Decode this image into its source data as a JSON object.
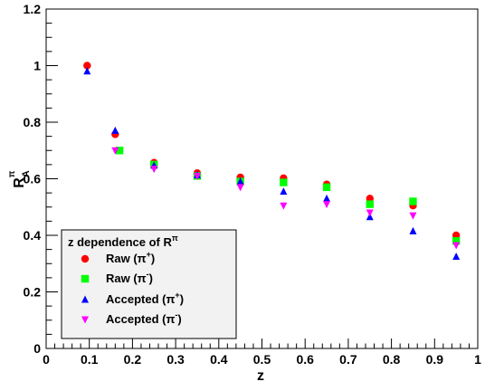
{
  "chart_data": {
    "type": "scatter",
    "title": "",
    "xlabel": "z",
    "ylabel": "R",
    "ylabel_sup": "π",
    "ylabel_sub": "A",
    "xlim": [
      0,
      1
    ],
    "ylim": [
      0,
      1.2
    ],
    "x_ticks": [
      "0",
      "0.1",
      "0.2",
      "0.3",
      "0.4",
      "0.5",
      "0.6",
      "0.7",
      "0.8",
      "0.9",
      "1"
    ],
    "y_ticks": [
      "0",
      "0.2",
      "0.4",
      "0.6",
      "0.8",
      "1",
      "1.2"
    ],
    "grid": false,
    "legend_placement": "bottom-left",
    "legend_title": {
      "text": "z dependence of R",
      "sup": "π"
    },
    "series": [
      {
        "name": "Raw (π⁺)",
        "label_main": "Raw (π",
        "label_sup": "+",
        "label_end": ")",
        "marker": "circle",
        "color": "#ff0000",
        "x": [
          0.095,
          0.16,
          0.25,
          0.35,
          0.45,
          0.55,
          0.65,
          0.75,
          0.85,
          0.95
        ],
        "y": [
          1.0,
          0.757,
          0.657,
          0.62,
          0.605,
          0.602,
          0.58,
          0.53,
          0.505,
          0.4
        ]
      },
      {
        "name": "Raw (π⁻)",
        "label_main": "Raw (π",
        "label_sup": "-",
        "label_end": ")",
        "marker": "square",
        "color": "#00ff00",
        "x": [
          0.17,
          0.25,
          0.35,
          0.45,
          0.55,
          0.65,
          0.75,
          0.85,
          0.95
        ],
        "y": [
          0.7,
          0.65,
          0.61,
          0.59,
          0.587,
          0.57,
          0.51,
          0.52,
          0.38
        ]
      },
      {
        "name": "Accepted (π⁺)",
        "label_main": "Accepted (π",
        "label_sup": "+",
        "label_end": ")",
        "marker": "triangle-up",
        "color": "#0000ff",
        "x": [
          0.095,
          0.16,
          0.25,
          0.35,
          0.45,
          0.55,
          0.65,
          0.75,
          0.85,
          0.95
        ],
        "y": [
          0.98,
          0.77,
          0.647,
          0.613,
          0.59,
          0.555,
          0.53,
          0.465,
          0.415,
          0.325
        ]
      },
      {
        "name": "Accepted (π⁻)",
        "label_main": "Accepted (π",
        "label_sup": "-",
        "label_end": ")",
        "marker": "triangle-down",
        "color": "#ff00ff",
        "x": [
          0.16,
          0.25,
          0.35,
          0.45,
          0.55,
          0.65,
          0.75,
          0.85,
          0.95
        ],
        "y": [
          0.7,
          0.635,
          0.61,
          0.57,
          0.505,
          0.51,
          0.48,
          0.47,
          0.365
        ]
      }
    ]
  }
}
